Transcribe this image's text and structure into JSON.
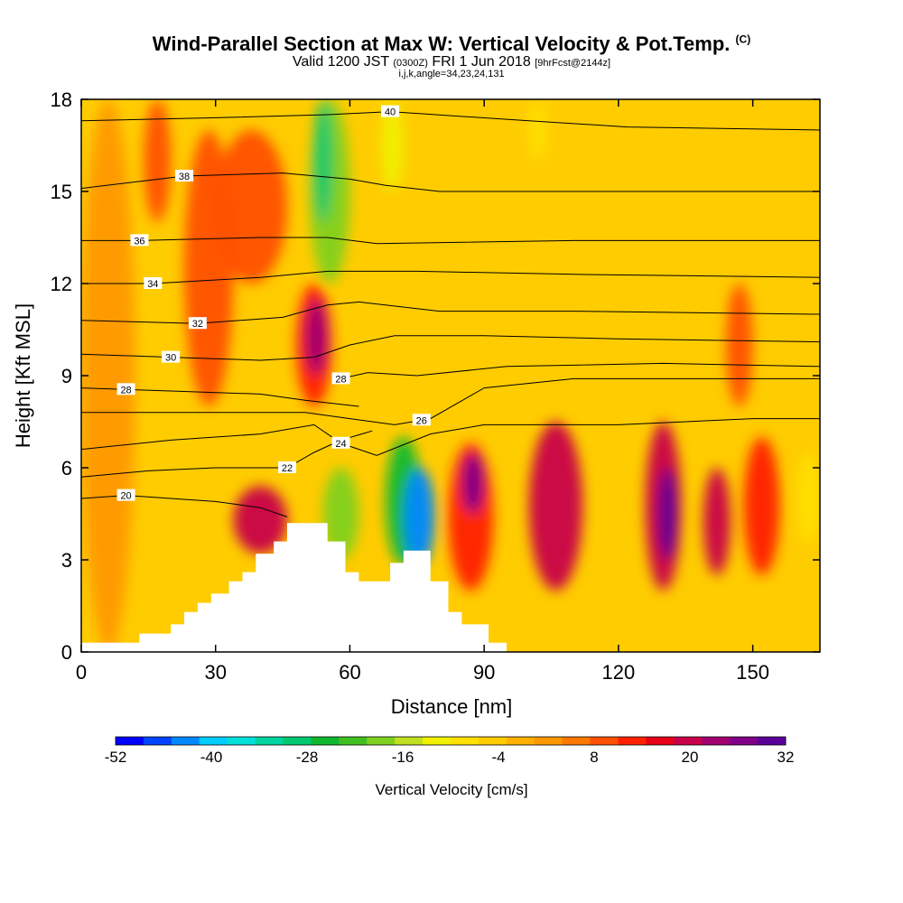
{
  "chart_data": {
    "type": "heatmap",
    "title": "Wind-Parallel Section at Max W: Vertical Velocity & Pot.Temp.",
    "title_mark": "(C)",
    "subtitle_main": "Valid 1200 JST",
    "subtitle_utc": "(0300Z)",
    "subtitle_date": "FRI 1 Jun 2018",
    "subtitle_fcst": "[9hrFcst@2144z]",
    "subtitle2": "i,j,k,angle=34,23,24,131",
    "xlabel": "Distance [nm]",
    "ylabel": "Height [Kft MSL]",
    "xlim": [
      0,
      165
    ],
    "ylim": [
      0,
      18
    ],
    "x_ticks": [
      "0",
      "30",
      "60",
      "90",
      "120",
      "150"
    ],
    "y_ticks": [
      "0",
      "3",
      "6",
      "9",
      "12",
      "15",
      "18"
    ],
    "colorbar": {
      "label": "Vertical Velocity [cm/s]",
      "range": [
        -52,
        32
      ],
      "tick_labels": [
        "-52",
        "-40",
        "-28",
        "-16",
        "-4",
        "8",
        "20",
        "32"
      ],
      "colors": [
        "#0000ff",
        "#0044ff",
        "#0088ff",
        "#00ccff",
        "#00e0d8",
        "#00d4a0",
        "#00c870",
        "#10b830",
        "#40c020",
        "#80d020",
        "#c0e020",
        "#f0f000",
        "#ffe000",
        "#ffcc00",
        "#ffb000",
        "#ff9800",
        "#ff7800",
        "#ff5000",
        "#ff2000",
        "#e80018",
        "#c8004a",
        "#a00070",
        "#800088",
        "#5a0098"
      ]
    },
    "velocity_cells": [
      {
        "x": [
          0,
          12
        ],
        "y": [
          0,
          18
        ],
        "w": 1
      },
      {
        "x": [
          14,
          20
        ],
        "y": [
          14,
          18
        ],
        "w": 10
      },
      {
        "x": [
          23,
          34
        ],
        "y": [
          8,
          17
        ],
        "w": 8
      },
      {
        "x": [
          30,
          46
        ],
        "y": [
          12,
          17
        ],
        "w": 9
      },
      {
        "x": [
          34,
          46
        ],
        "y": [
          3.2,
          5.4
        ],
        "w": 18
      },
      {
        "x": [
          48,
          56
        ],
        "y": [
          8,
          12
        ],
        "w": 14
      },
      {
        "x": [
          50,
          55
        ],
        "y": [
          9,
          11.5
        ],
        "w": 22
      },
      {
        "x": [
          51,
          60
        ],
        "y": [
          12,
          18
        ],
        "w": -18
      },
      {
        "x": [
          52,
          56
        ],
        "y": [
          14,
          18
        ],
        "w": -30
      },
      {
        "x": [
          54,
          62
        ],
        "y": [
          3,
          6
        ],
        "w": -20
      },
      {
        "x": [
          68,
          76
        ],
        "y": [
          2.8,
          7
        ],
        "w": -25
      },
      {
        "x": [
          72,
          79
        ],
        "y": [
          2.8,
          6
        ],
        "w": -42
      },
      {
        "x": [
          67,
          72
        ],
        "y": [
          15,
          18
        ],
        "w": -12
      },
      {
        "x": [
          82,
          92
        ],
        "y": [
          2,
          6.8
        ],
        "w": 14
      },
      {
        "x": [
          85,
          90
        ],
        "y": [
          4.5,
          6.5
        ],
        "w": 26
      },
      {
        "x": [
          100,
          112
        ],
        "y": [
          2,
          7.5
        ],
        "w": 18
      },
      {
        "x": [
          126,
          134
        ],
        "y": [
          2,
          7.5
        ],
        "w": 20
      },
      {
        "x": [
          129,
          133
        ],
        "y": [
          3,
          6
        ],
        "w": 30
      },
      {
        "x": [
          139,
          145
        ],
        "y": [
          2.5,
          6
        ],
        "w": 18
      },
      {
        "x": [
          148,
          156
        ],
        "y": [
          2.5,
          7
        ],
        "w": 14
      },
      {
        "x": [
          160,
          165
        ],
        "y": [
          3.5,
          6.5
        ],
        "w": -10
      },
      {
        "x": [
          100,
          104
        ],
        "y": [
          16,
          18
        ],
        "w": -10
      },
      {
        "x": [
          144,
          150
        ],
        "y": [
          8,
          12
        ],
        "w": 9
      }
    ],
    "terrain_profile": [
      [
        0,
        0.3
      ],
      [
        13,
        0.3
      ],
      [
        13,
        0.6
      ],
      [
        20,
        0.6
      ],
      [
        20,
        0.9
      ],
      [
        23,
        0.9
      ],
      [
        23,
        1.3
      ],
      [
        26,
        1.3
      ],
      [
        26,
        1.6
      ],
      [
        29,
        1.6
      ],
      [
        29,
        1.9
      ],
      [
        33,
        1.9
      ],
      [
        33,
        2.3
      ],
      [
        36,
        2.3
      ],
      [
        36,
        2.6
      ],
      [
        39,
        2.6
      ],
      [
        39,
        3.2
      ],
      [
        43,
        3.2
      ],
      [
        43,
        3.6
      ],
      [
        46,
        3.6
      ],
      [
        46,
        4.2
      ],
      [
        55,
        4.2
      ],
      [
        55,
        3.6
      ],
      [
        59,
        3.6
      ],
      [
        59,
        2.6
      ],
      [
        62,
        2.6
      ],
      [
        62,
        2.3
      ],
      [
        69,
        2.3
      ],
      [
        69,
        2.9
      ],
      [
        72,
        2.9
      ],
      [
        72,
        3.3
      ],
      [
        78,
        3.3
      ],
      [
        78,
        2.3
      ],
      [
        82,
        2.3
      ],
      [
        82,
        1.3
      ],
      [
        85,
        1.3
      ],
      [
        85,
        0.9
      ],
      [
        91,
        0.9
      ],
      [
        91,
        0.3
      ],
      [
        95,
        0.3
      ],
      [
        95,
        0
      ]
    ],
    "isentropes": [
      {
        "value": 20,
        "label_x": 10,
        "points": [
          [
            0,
            5.0
          ],
          [
            10,
            5.1
          ],
          [
            20,
            5.0
          ],
          [
            30,
            4.9
          ],
          [
            40,
            4.7
          ],
          [
            46,
            4.4
          ]
        ]
      },
      {
        "value": 22,
        "label_x": 46,
        "points": [
          [
            0,
            5.7
          ],
          [
            15,
            5.9
          ],
          [
            30,
            6.0
          ],
          [
            46,
            6.0
          ],
          [
            52,
            6.5
          ],
          [
            58,
            6.9
          ],
          [
            65,
            7.2
          ]
        ]
      },
      {
        "value": 24,
        "label_x": 58,
        "points": [
          [
            0,
            6.6
          ],
          [
            20,
            6.9
          ],
          [
            40,
            7.1
          ],
          [
            52,
            7.4
          ],
          [
            58,
            6.8
          ],
          [
            66,
            6.4
          ],
          [
            78,
            7.1
          ],
          [
            90,
            7.4
          ],
          [
            120,
            7.4
          ],
          [
            150,
            7.6
          ],
          [
            165,
            7.6
          ]
        ]
      },
      {
        "value": 28,
        "label_x": 10,
        "points": [
          [
            0,
            8.6
          ],
          [
            20,
            8.5
          ],
          [
            40,
            8.4
          ],
          [
            50,
            8.2
          ],
          [
            56,
            8.1
          ],
          [
            62,
            8.0
          ]
        ]
      },
      {
        "value": 26,
        "label_x": 76,
        "points": [
          [
            0,
            7.8
          ],
          [
            30,
            7.8
          ],
          [
            50,
            7.8
          ],
          [
            60,
            7.6
          ],
          [
            70,
            7.4
          ],
          [
            78,
            7.6
          ],
          [
            90,
            8.6
          ],
          [
            110,
            8.9
          ],
          [
            165,
            8.9
          ]
        ]
      },
      {
        "value": 28,
        "label_x": 58,
        "points": [
          [
            58,
            8.9
          ],
          [
            64,
            9.1
          ],
          [
            75,
            9.0
          ],
          [
            95,
            9.3
          ],
          [
            130,
            9.4
          ],
          [
            165,
            9.3
          ]
        ]
      },
      {
        "value": 30,
        "label_x": 20,
        "points": [
          [
            0,
            9.7
          ],
          [
            20,
            9.6
          ],
          [
            40,
            9.5
          ],
          [
            52,
            9.6
          ],
          [
            60,
            10.0
          ],
          [
            70,
            10.3
          ],
          [
            90,
            10.3
          ],
          [
            120,
            10.2
          ],
          [
            165,
            10.1
          ]
        ]
      },
      {
        "value": 32,
        "label_x": 26,
        "points": [
          [
            0,
            10.8
          ],
          [
            26,
            10.7
          ],
          [
            45,
            10.9
          ],
          [
            55,
            11.3
          ],
          [
            62,
            11.4
          ],
          [
            80,
            11.1
          ],
          [
            110,
            11.1
          ],
          [
            165,
            11.0
          ]
        ]
      },
      {
        "value": 34,
        "label_x": 16,
        "points": [
          [
            0,
            12.0
          ],
          [
            16,
            12.0
          ],
          [
            40,
            12.2
          ],
          [
            55,
            12.4
          ],
          [
            75,
            12.4
          ],
          [
            110,
            12.3
          ],
          [
            165,
            12.2
          ]
        ]
      },
      {
        "value": 36,
        "label_x": 13,
        "points": [
          [
            0,
            13.4
          ],
          [
            13,
            13.4
          ],
          [
            40,
            13.5
          ],
          [
            55,
            13.5
          ],
          [
            66,
            13.3
          ],
          [
            110,
            13.4
          ],
          [
            165,
            13.4
          ]
        ]
      },
      {
        "value": 38,
        "label_x": 23,
        "points": [
          [
            0,
            15.1
          ],
          [
            23,
            15.5
          ],
          [
            45,
            15.6
          ],
          [
            60,
            15.4
          ],
          [
            68,
            15.2
          ],
          [
            80,
            15.0
          ],
          [
            120,
            15.0
          ],
          [
            165,
            15.0
          ]
        ]
      },
      {
        "value": 40,
        "label_x": 69,
        "points": [
          [
            0,
            17.3
          ],
          [
            30,
            17.4
          ],
          [
            55,
            17.5
          ],
          [
            69,
            17.6
          ],
          [
            100,
            17.3
          ],
          [
            122,
            17.1
          ],
          [
            165,
            17.0
          ]
        ]
      }
    ]
  }
}
